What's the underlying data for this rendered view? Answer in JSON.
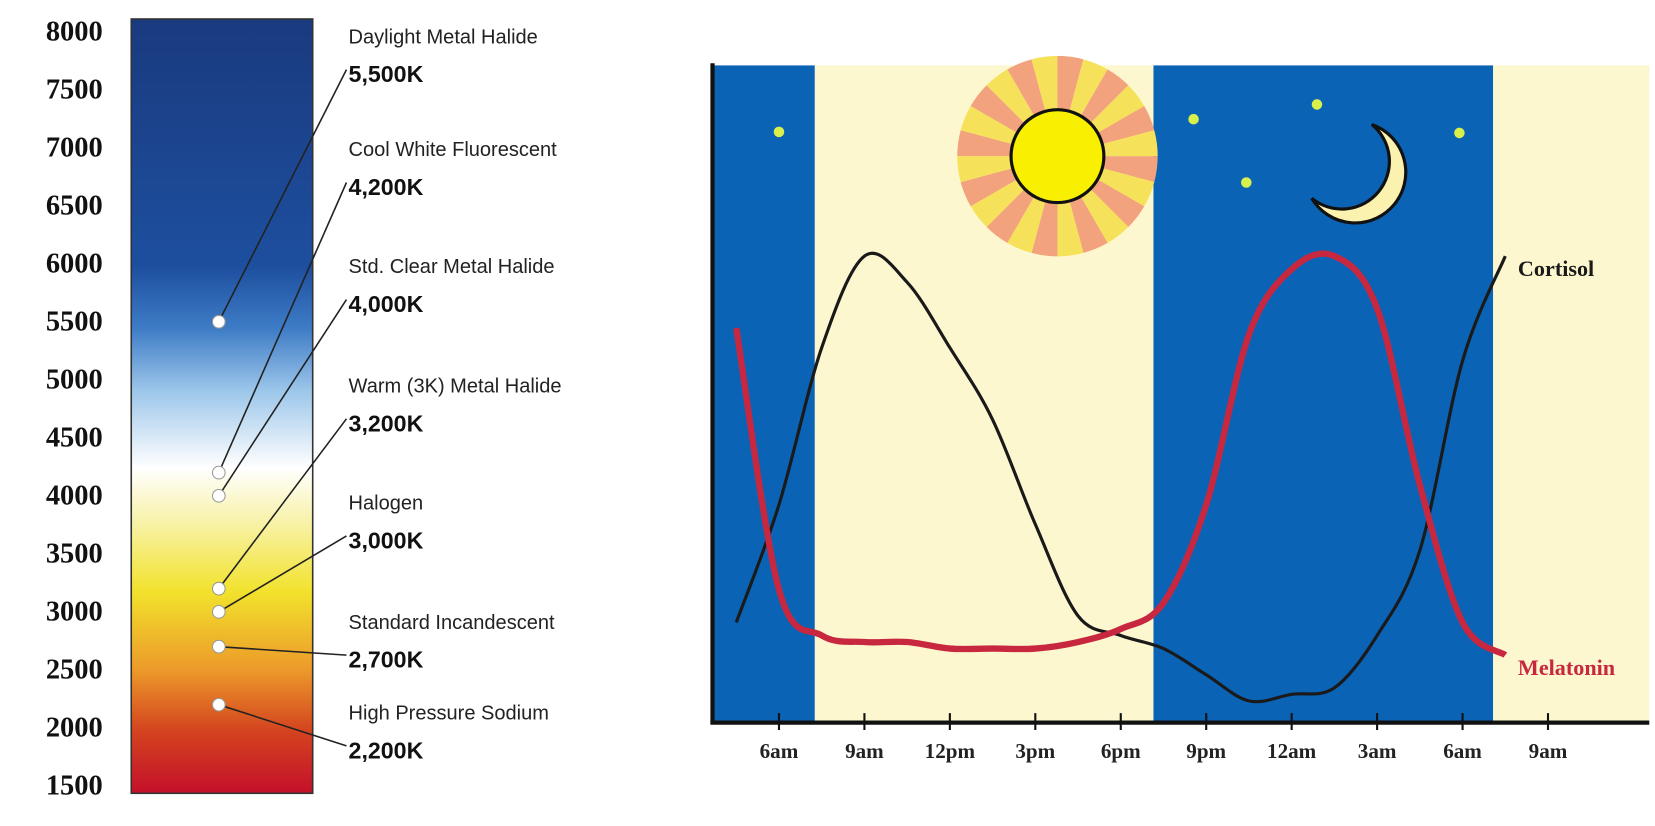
{
  "chart_data": [
    {
      "type": "scale",
      "categories": [
        "Daylight Metal Halide",
        "Cool White Fluorescent",
        "Std. Clear Metal Halide",
        "Warm (3K) Metal Halide",
        "Halogen",
        "Standard Incandescent",
        "High Pressure Sodium"
      ],
      "values": [
        5500,
        4200,
        4000,
        3200,
        3000,
        2700,
        2200
      ],
      "value_labels": [
        "5,500K",
        "4,200K",
        "4,000K",
        "3,200K",
        "3,000K",
        "2,700K",
        "2,200K"
      ],
      "ylim": [
        1500,
        8000
      ],
      "yticks": [
        1500,
        2000,
        2500,
        3000,
        3500,
        4000,
        4500,
        5000,
        5500,
        6000,
        6500,
        7000,
        7500,
        8000
      ]
    },
    {
      "type": "line",
      "categories": [
        null,
        "6am",
        null,
        "9am",
        null,
        "12pm",
        null,
        "3pm",
        null,
        "6pm",
        null,
        "9pm",
        null,
        "12am",
        null,
        "3am",
        null,
        "6am",
        null,
        "9am",
        null,
        null
      ],
      "series": [
        {
          "name": "Cortisol",
          "color": "#1a1a1a",
          "values": [
            15,
            33,
            57,
            71,
            67,
            57,
            46,
            30,
            16,
            13,
            11,
            7,
            3,
            4,
            5,
            13,
            26,
            55,
            71,
            null,
            null,
            null
          ]
        },
        {
          "name": "Melatonin",
          "color": "#c8283f",
          "values": [
            60,
            20,
            13,
            12,
            12,
            11,
            11,
            11,
            12,
            14,
            18,
            33,
            59,
            69,
            71,
            63,
            36,
            15,
            10,
            null,
            null,
            null
          ]
        }
      ]
    }
  ]
}
